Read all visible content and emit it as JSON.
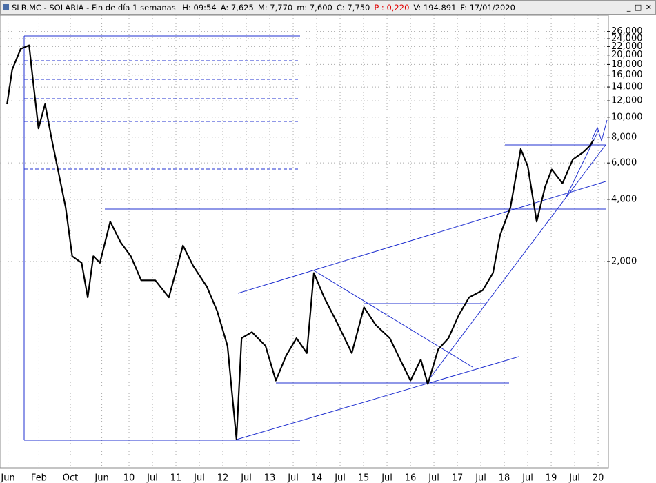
{
  "chart_data": {
    "type": "line",
    "title": "SLR.MC - SOLARIA - Fin de día 1 semanas",
    "stats": [
      "H: 09:54",
      "A: 7,625",
      "M: 7,770",
      "m: 7,600",
      "C: 7,750",
      "P : 0,220",
      "V: 194.891",
      "F: 17/01/2020"
    ],
    "stat_colors": [
      "#000000",
      "#000000",
      "#000000",
      "#000000",
      "#000000",
      "#e00000",
      "#000000",
      "#000000"
    ],
    "log_y": true,
    "grid": true,
    "xlim": [
      2007.25,
      2020.19
    ],
    "ylim": [
      230,
      28000
    ],
    "xticks": [
      {
        "value": 2007.42,
        "label": "Jun"
      },
      {
        "value": 2008.08,
        "label": "Feb"
      },
      {
        "value": 2008.75,
        "label": "Oct"
      },
      {
        "value": 2009.42,
        "label": "Jun"
      },
      {
        "value": 2010,
        "label": "10"
      },
      {
        "value": 2010.5,
        "label": "Jul"
      },
      {
        "value": 2011,
        "label": "11"
      },
      {
        "value": 2011.5,
        "label": "Jul"
      },
      {
        "value": 2012,
        "label": "12"
      },
      {
        "value": 2012.5,
        "label": "Jul"
      },
      {
        "value": 2013,
        "label": "13"
      },
      {
        "value": 2013.5,
        "label": "Jul"
      },
      {
        "value": 2014,
        "label": "14"
      },
      {
        "value": 2014.5,
        "label": "Jul"
      },
      {
        "value": 2015,
        "label": "15"
      },
      {
        "value": 2015.5,
        "label": "Jul"
      },
      {
        "value": 2016,
        "label": "16"
      },
      {
        "value": 2016.5,
        "label": "Jul"
      },
      {
        "value": 2017,
        "label": "17"
      },
      {
        "value": 2017.5,
        "label": "Jul"
      },
      {
        "value": 2018,
        "label": "18"
      },
      {
        "value": 2018.5,
        "label": "Jul"
      },
      {
        "value": 2019,
        "label": "19"
      },
      {
        "value": 2019.5,
        "label": "Jul"
      },
      {
        "value": 2020,
        "label": "20"
      }
    ],
    "yticks": [
      {
        "value": 26000,
        "label": "26,000"
      },
      {
        "value": 24000,
        "label": "24,000"
      },
      {
        "value": 22000,
        "label": "22,000"
      },
      {
        "value": 20000,
        "label": "20,000"
      },
      {
        "value": 18000,
        "label": "18,000"
      },
      {
        "value": 16000,
        "label": "16,000"
      },
      {
        "value": 14000,
        "label": "14,000"
      },
      {
        "value": 12000,
        "label": "12,000"
      },
      {
        "value": 10000,
        "label": "10,000"
      },
      {
        "value": 8000,
        "label": "8,000"
      },
      {
        "value": 6000,
        "label": "6,000"
      },
      {
        "value": 4000,
        "label": "4,000"
      },
      {
        "value": 2000,
        "label": "2,000"
      }
    ],
    "series": [
      {
        "name": "SLR.MC",
        "color": "#000000",
        "x": [
          2007.4,
          2007.51,
          2007.69,
          2007.87,
          2007.96,
          2008.07,
          2008.21,
          2008.35,
          2008.5,
          2008.65,
          2008.79,
          2008.99,
          2009.12,
          2009.24,
          2009.38,
          2009.6,
          2009.82,
          2010.04,
          2010.26,
          2010.56,
          2010.85,
          2011.15,
          2011.37,
          2011.66,
          2011.88,
          2012.1,
          2012.29,
          2012.4,
          2012.62,
          2012.91,
          2013.13,
          2013.35,
          2013.57,
          2013.79,
          2013.94,
          2014.16,
          2014.46,
          2014.75,
          2015.01,
          2015.26,
          2015.56,
          2015.78,
          2016.0,
          2016.22,
          2016.37,
          2016.59,
          2016.81,
          2017.03,
          2017.25,
          2017.54,
          2017.76,
          2017.91,
          2018.13,
          2018.35,
          2018.5,
          2018.69,
          2018.87,
          2019.01,
          2019.24,
          2019.46,
          2019.68,
          2019.82,
          2019.9
        ],
        "values": [
          11560,
          17000,
          21400,
          22300,
          14600,
          8820,
          11560,
          7880,
          5360,
          3650,
          2120,
          1970,
          1340,
          2120,
          1970,
          3120,
          2480,
          2120,
          1620,
          1620,
          1340,
          2390,
          1900,
          1510,
          1150,
          780,
          276,
          850,
          910,
          780,
          530,
          700,
          850,
          720,
          1760,
          1340,
          985,
          720,
          1200,
          985,
          850,
          670,
          530,
          670,
          510,
          750,
          850,
          1100,
          1340,
          1450,
          1760,
          2680,
          3650,
          7010,
          5780,
          3120,
          4600,
          5580,
          4780,
          6240,
          6760,
          7250,
          7750
        ]
      }
    ]
  }
}
